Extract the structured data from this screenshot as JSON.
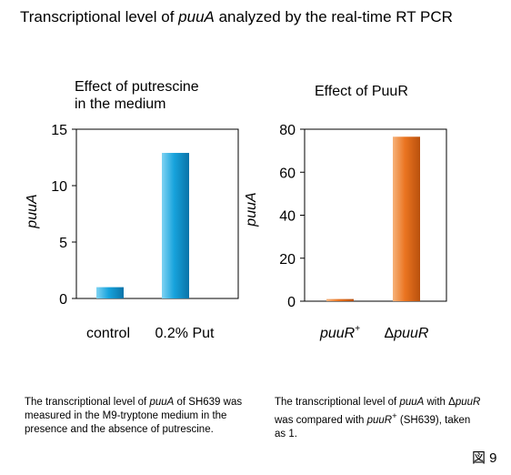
{
  "title": {
    "prefix": "Transcriptional level of ",
    "gene": "puuA",
    "suffix": " analyzed by the real-time RT PCR"
  },
  "figure_label": "図 9",
  "colors": {
    "left_bar": "#1ea6dc",
    "right_bar": "#e8731e",
    "axis": "#000000"
  },
  "chart_data": [
    {
      "type": "bar",
      "title_line1": "Effect of putrescine",
      "title_line2": "in the medium",
      "ylabel": "puuA",
      "ylim": [
        0,
        15
      ],
      "yticks": [
        0,
        5,
        10,
        15
      ],
      "categories": [
        "control",
        "0.2% Put"
      ],
      "values": [
        1.0,
        12.9
      ],
      "caption": {
        "part1": "The transcriptional level of ",
        "gene": "puuA",
        "part2": " of SH639 was measured in the M9-tryptone medium in the presence and the absence of putrescine."
      }
    },
    {
      "type": "bar",
      "title": "Effect of PuuR",
      "ylabel": "puuA",
      "ylim": [
        0,
        80
      ],
      "yticks": [
        0,
        20,
        40,
        60,
        80
      ],
      "categories": [
        {
          "prefix": "",
          "gene": "puuR",
          "sup": "+"
        },
        {
          "prefix": "Δ",
          "gene": "puuR",
          "sup": ""
        }
      ],
      "values": [
        1.0,
        76.5
      ],
      "caption": {
        "part1": "The transcriptional level of ",
        "gene1": "puuA",
        "part2": " with ",
        "delta": "Δ",
        "gene2": "puuR",
        "part3": " was compared with ",
        "gene3": "puuR",
        "sup3": "+",
        "part4": " (SH639), taken as 1."
      }
    }
  ]
}
